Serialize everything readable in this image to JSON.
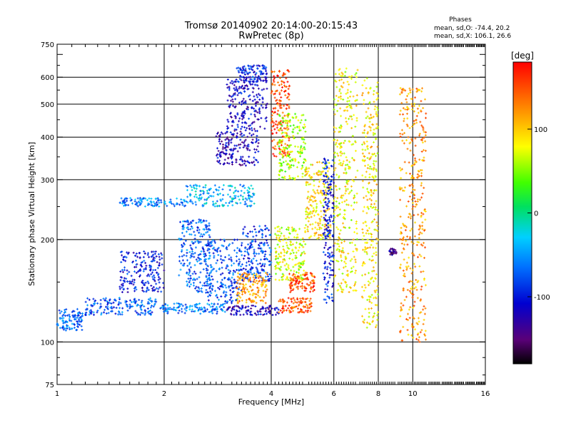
{
  "chart_data": {
    "type": "scatter",
    "title": "Tromsø 20140902 20:14:00-20:15:43",
    "subtitle": "RwPretec (8p)",
    "xlabel": "Frequency [MHz]",
    "ylabel": "Stationary phase Virtual Height [km]",
    "x_scale": "log",
    "y_scale": "log",
    "xlim": [
      1,
      16
    ],
    "ylim": [
      75,
      750
    ],
    "x_ticks": [
      1,
      2,
      4,
      6,
      8,
      10,
      16
    ],
    "x_tick_labels": [
      "1",
      "2",
      "4",
      "6",
      "8",
      "10",
      "16"
    ],
    "y_ticks": [
      75,
      100,
      200,
      300,
      400,
      500,
      600,
      750
    ],
    "y_tick_labels": [
      "75",
      "100",
      "200",
      "300",
      "400",
      "500",
      "600",
      "750"
    ],
    "grid": true,
    "stats": {
      "heading": "Phases",
      "line1": "mean, sd,O: -74.4, 20.2",
      "line2": "mean, sd,X: 106.1, 26.6"
    },
    "colorbar": {
      "label": "[deg]",
      "min": -180,
      "max": 180,
      "ticks": [
        100,
        0,
        -100
      ],
      "tick_labels": [
        "100",
        "0",
        "-100"
      ],
      "colormap": "rainbow"
    },
    "clusters": [
      {
        "f": [
          1.0,
          1.18
        ],
        "h": [
          108,
          125
        ],
        "phase": -70
      },
      {
        "f": [
          1.2,
          1.9
        ],
        "h": [
          120,
          135
        ],
        "phase": -75
      },
      {
        "f": [
          1.95,
          3.0
        ],
        "h": [
          121,
          130
        ],
        "phase": -60
      },
      {
        "f": [
          3.0,
          4.2
        ],
        "h": [
          120,
          128
        ],
        "phase": -120
      },
      {
        "f": [
          4.2,
          5.2
        ],
        "h": [
          122,
          135
        ],
        "phase": 150
      },
      {
        "f": [
          1.5,
          2.0
        ],
        "h": [
          140,
          185
        ],
        "phase": -100
      },
      {
        "f": [
          2.2,
          2.7
        ],
        "h": [
          140,
          230
        ],
        "phase": -70
      },
      {
        "f": [
          2.6,
          3.3
        ],
        "h": [
          130,
          200
        ],
        "phase": -80
      },
      {
        "f": [
          3.3,
          4.0
        ],
        "h": [
          150,
          220
        ],
        "phase": -85
      },
      {
        "f": [
          3.2,
          3.9
        ],
        "h": [
          130,
          160
        ],
        "phase": 120
      },
      {
        "f": [
          4.1,
          5.0
        ],
        "h": [
          150,
          220
        ],
        "phase": 70
      },
      {
        "f": [
          4.5,
          5.3
        ],
        "h": [
          140,
          160
        ],
        "phase": 150
      },
      {
        "f": [
          1.5,
          2.3
        ],
        "h": [
          250,
          265
        ],
        "phase": -60
      },
      {
        "f": [
          2.3,
          3.6
        ],
        "h": [
          250,
          290
        ],
        "phase": -40
      },
      {
        "f": [
          2.8,
          3.7
        ],
        "h": [
          330,
          420
        ],
        "phase": -120
      },
      {
        "f": [
          3.0,
          3.9
        ],
        "h": [
          420,
          600
        ],
        "phase": -115
      },
      {
        "f": [
          3.2,
          3.9
        ],
        "h": [
          580,
          650
        ],
        "phase": -100
      },
      {
        "f": [
          4.0,
          4.5
        ],
        "h": [
          350,
          630
        ],
        "phase": 150
      },
      {
        "f": [
          4.2,
          5.0
        ],
        "h": [
          300,
          470
        ],
        "phase": 60
      },
      {
        "f": [
          5.0,
          5.9
        ],
        "h": [
          200,
          340
        ],
        "phase": 90
      },
      {
        "f": [
          5.6,
          6.0
        ],
        "h": [
          130,
          350
        ],
        "phase": -100
      },
      {
        "f": [
          6.0,
          7.0
        ],
        "h": [
          140,
          640
        ],
        "phase": 80
      },
      {
        "f": [
          7.2,
          8.0
        ],
        "h": [
          110,
          600
        ],
        "phase": 90
      },
      {
        "f": [
          8.6,
          9.0
        ],
        "h": [
          180,
          188
        ],
        "phase": -130
      },
      {
        "f": [
          9.2,
          10.9
        ],
        "h": [
          100,
          560
        ],
        "phase": 120
      }
    ]
  }
}
